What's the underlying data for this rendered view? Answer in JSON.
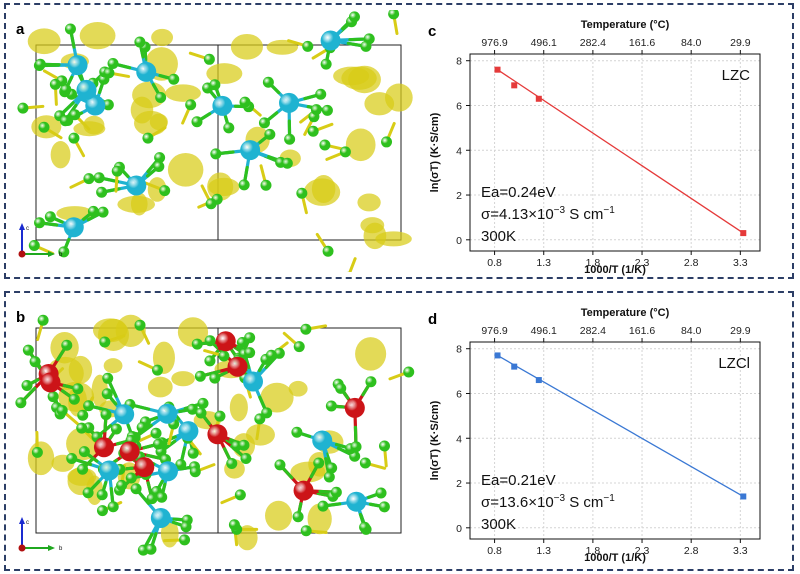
{
  "figure": {
    "panels": [
      {
        "letter": "a",
        "axis_triad": {
          "up": "c",
          "right": "b"
        }
      },
      {
        "letter": "b",
        "axis_triad": {
          "up": "c",
          "right": "b"
        }
      }
    ],
    "atom_colors": {
      "green": "#2ec01e",
      "cyan": "#1fb3d1",
      "red": "#cc1418",
      "yellow": "#d8cc16"
    }
  },
  "chart_data": [
    {
      "type": "scatter",
      "panel": "c",
      "label": "LZC",
      "top_axis": {
        "title": "Temperature (°C)",
        "ticks": [
          "976.9",
          "496.1",
          "282.4",
          "161.6",
          "84.0",
          "29.9"
        ]
      },
      "xlabel": "1000/T (1/K)",
      "ylabel": "ln(σT) (K·S/cm)",
      "xlim": [
        0.55,
        3.5
      ],
      "ylim": [
        -0.5,
        8.3
      ],
      "xticks": [
        0.8,
        1.3,
        1.8,
        2.3,
        2.8,
        3.3
      ],
      "yticks": [
        0,
        2,
        4,
        6,
        8
      ],
      "grid": true,
      "color": "#e53a3a",
      "points": {
        "x": [
          0.83,
          1.0,
          1.25,
          3.33
        ],
        "y": [
          7.6,
          6.9,
          6.3,
          0.3
        ]
      },
      "fit": {
        "x": [
          0.83,
          3.33
        ],
        "y": [
          7.6,
          0.3
        ]
      },
      "annotations": {
        "ea": "Ea=0.24eV",
        "sigma_prefix": "σ=4.13×10",
        "sigma_exp": "−3",
        "sigma_unit": " S cm",
        "unit_exp": "−1",
        "temp": "300K"
      }
    },
    {
      "type": "scatter",
      "panel": "d",
      "label": "LZCl",
      "top_axis": {
        "title": "Temperature (°C)",
        "ticks": [
          "976.9",
          "496.1",
          "282.4",
          "161.6",
          "84.0",
          "29.9"
        ]
      },
      "xlabel": "1000/T (1/K)",
      "ylabel": "ln(σT) (K·S/cm)",
      "xlim": [
        0.55,
        3.5
      ],
      "ylim": [
        -0.5,
        8.3
      ],
      "xticks": [
        0.8,
        1.3,
        1.8,
        2.3,
        2.8,
        3.3
      ],
      "yticks": [
        0,
        2,
        4,
        6,
        8
      ],
      "grid": true,
      "color": "#3a78d4",
      "points": {
        "x": [
          0.83,
          1.0,
          1.25,
          3.33
        ],
        "y": [
          7.7,
          7.2,
          6.6,
          1.4
        ]
      },
      "fit": {
        "x": [
          0.83,
          3.33
        ],
        "y": [
          7.7,
          1.4
        ]
      },
      "annotations": {
        "ea": "Ea=0.21eV",
        "sigma_prefix": "σ=13.6×10",
        "sigma_exp": "−3",
        "sigma_unit": " S cm",
        "unit_exp": "−1",
        "temp": "300K"
      }
    }
  ]
}
